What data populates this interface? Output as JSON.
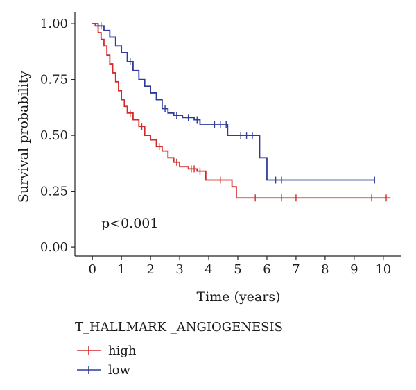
{
  "chart_data": {
    "type": "line",
    "subtype": "kaplan-meier",
    "xlabel": "Time (years)",
    "ylabel": "Survival probability",
    "xlim": [
      -0.6,
      10.6
    ],
    "ylim": [
      -0.04,
      1.05
    ],
    "xticks": [
      0,
      1,
      2,
      3,
      4,
      5,
      6,
      7,
      8,
      9,
      10
    ],
    "yticks": [
      0.0,
      0.25,
      0.5,
      0.75,
      1.0
    ],
    "ytick_labels": [
      "0.00",
      "0.25",
      "0.50",
      "0.75",
      "1.00"
    ],
    "grid": false,
    "annotation": "p<0.001",
    "legend": {
      "title": "T_HALLMARK _ANGIOGENESIS",
      "position": "bottom-left",
      "entries": [
        "high",
        "low"
      ]
    },
    "series": [
      {
        "name": "high",
        "color": "#d42a2a",
        "steps": [
          [
            0,
            1.0
          ],
          [
            0.1,
            0.99
          ],
          [
            0.2,
            0.96
          ],
          [
            0.3,
            0.93
          ],
          [
            0.4,
            0.9
          ],
          [
            0.5,
            0.86
          ],
          [
            0.6,
            0.82
          ],
          [
            0.7,
            0.78
          ],
          [
            0.8,
            0.74
          ],
          [
            0.9,
            0.7
          ],
          [
            1.0,
            0.66
          ],
          [
            1.1,
            0.63
          ],
          [
            1.2,
            0.6
          ],
          [
            1.4,
            0.57
          ],
          [
            1.6,
            0.54
          ],
          [
            1.8,
            0.5
          ],
          [
            2.0,
            0.48
          ],
          [
            2.2,
            0.45
          ],
          [
            2.4,
            0.43
          ],
          [
            2.6,
            0.4
          ],
          [
            2.8,
            0.38
          ],
          [
            3.0,
            0.36
          ],
          [
            3.3,
            0.35
          ],
          [
            3.6,
            0.34
          ],
          [
            3.9,
            0.3
          ],
          [
            4.8,
            0.27
          ],
          [
            4.95,
            0.22
          ],
          [
            10.25,
            0.22
          ]
        ],
        "censor_times": [
          1.3,
          1.7,
          2.3,
          2.9,
          3.4,
          3.5,
          3.7,
          4.4,
          5.6,
          6.5,
          7.0,
          9.6,
          10.1
        ]
      },
      {
        "name": "low",
        "color": "#2f3b9c",
        "steps": [
          [
            0,
            1.0
          ],
          [
            0.2,
            0.99
          ],
          [
            0.4,
            0.97
          ],
          [
            0.6,
            0.94
          ],
          [
            0.8,
            0.9
          ],
          [
            1.0,
            0.87
          ],
          [
            1.2,
            0.83
          ],
          [
            1.4,
            0.79
          ],
          [
            1.6,
            0.75
          ],
          [
            1.8,
            0.72
          ],
          [
            2.0,
            0.69
          ],
          [
            2.2,
            0.66
          ],
          [
            2.4,
            0.62
          ],
          [
            2.6,
            0.6
          ],
          [
            2.8,
            0.59
          ],
          [
            3.1,
            0.58
          ],
          [
            3.5,
            0.57
          ],
          [
            3.7,
            0.55
          ],
          [
            4.65,
            0.5
          ],
          [
            5.75,
            0.4
          ],
          [
            6.0,
            0.3
          ],
          [
            9.7,
            0.3
          ]
        ],
        "censor_times": [
          0.3,
          1.3,
          2.5,
          2.9,
          3.3,
          3.6,
          4.2,
          4.4,
          4.6,
          5.1,
          5.3,
          5.5,
          6.3,
          6.5,
          9.7
        ]
      }
    ]
  }
}
